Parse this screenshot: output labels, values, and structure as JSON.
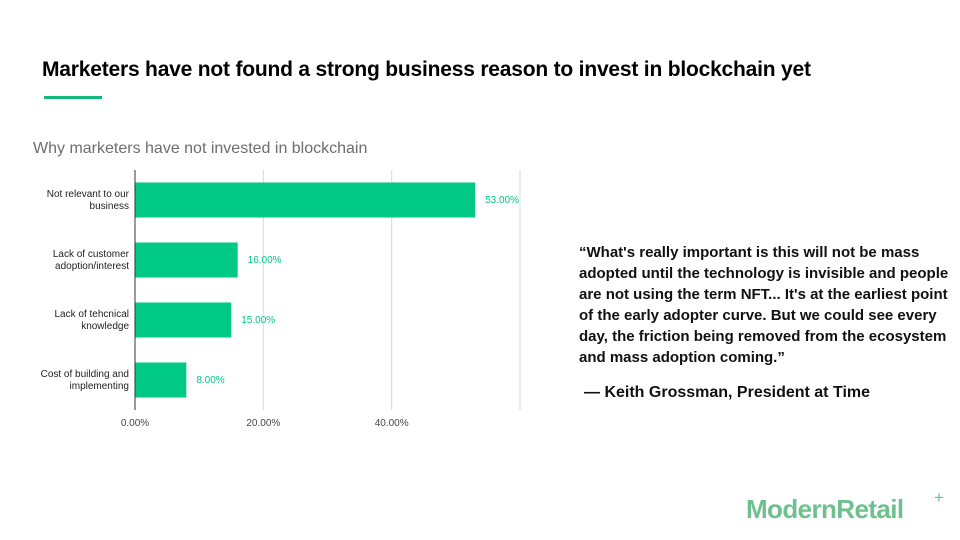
{
  "headline": "Marketers have not found a strong business reason to invest in blockchain yet",
  "accent_color": "#14b87a",
  "quote": {
    "text": "“What's really important is this will not be mass adopted until the technology is invisible and people are not using the term NFT... It's at the earliest point of the early adopter curve. But we could see every day, the friction being removed from the ecosystem and mass adoption coming.”",
    "attribution": "— Keith Grossman, President at Time"
  },
  "logo": {
    "text": "ModernRetail",
    "plus": "+",
    "color": "#6fc08f"
  },
  "chart_data": {
    "type": "bar",
    "orientation": "horizontal",
    "title": "Why marketers have not invested in blockchain",
    "categories": [
      [
        "Not relevant to our",
        "business"
      ],
      [
        "Lack of customer",
        "adoption/interest"
      ],
      [
        "Lack of tehcnical",
        "knowledge"
      ],
      [
        "Cost of building and",
        "implementing"
      ]
    ],
    "values": [
      53,
      16,
      15,
      8
    ],
    "value_labels": [
      "53.00%",
      "16.00%",
      "15.00%",
      "8.00%"
    ],
    "x_ticks": [
      0,
      20,
      40
    ],
    "x_tick_labels": [
      "0.00%",
      "20.00%",
      "40.00%"
    ],
    "xlim": [
      0,
      60
    ],
    "grid": true,
    "bar_color": "#00c885",
    "label_color": "#00c885",
    "grid_color": "#d9d9d9",
    "axis_color": "#333333"
  }
}
